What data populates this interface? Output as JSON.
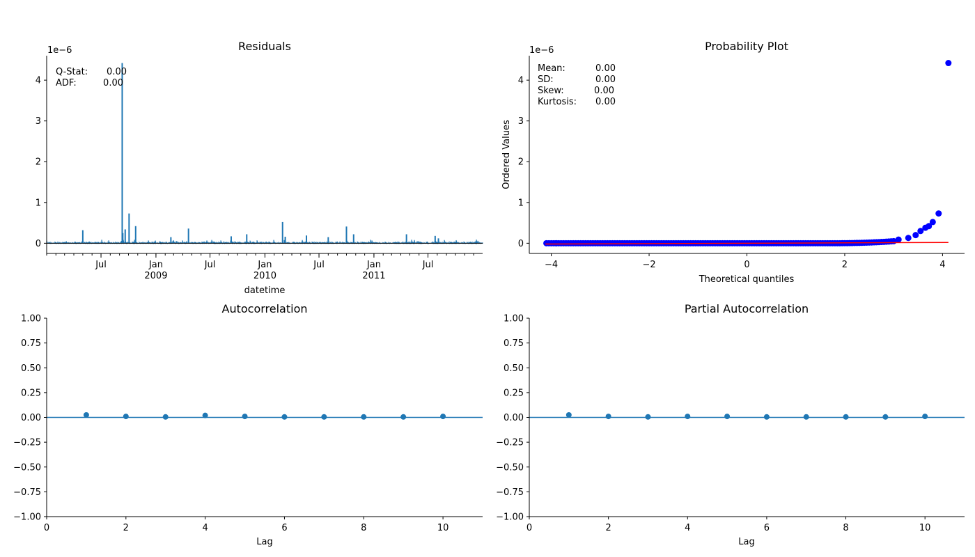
{
  "chart_data": [
    {
      "type": "line",
      "title": "Residuals",
      "xlabel": "datetime",
      "ylabel": "",
      "offset_text": "1e−6",
      "x_range": [
        "2008-01-01",
        "2011-12-31"
      ],
      "ylim": [
        -0.25,
        4.6
      ],
      "yticks": [
        0,
        1,
        2,
        3,
        4
      ],
      "xticks": [
        {
          "date": "2008-07-01",
          "label": "Jul",
          "year": ""
        },
        {
          "date": "2009-01-01",
          "label": "Jan",
          "year": "2009"
        },
        {
          "date": "2009-07-01",
          "label": "Jul",
          "year": ""
        },
        {
          "date": "2010-01-01",
          "label": "Jan",
          "year": "2010"
        },
        {
          "date": "2010-07-01",
          "label": "Jul",
          "year": ""
        },
        {
          "date": "2011-01-01",
          "label": "Jan",
          "year": "2011"
        },
        {
          "date": "2011-07-01",
          "label": "Jul",
          "year": ""
        }
      ],
      "annotations": [
        {
          "label": "Q-Stat:",
          "value": "0.00"
        },
        {
          "label": "ADF:",
          "value": "0.00"
        }
      ],
      "spikes": [
        {
          "date": "2008-05-01",
          "value": 0.32
        },
        {
          "date": "2008-09-10",
          "value": 4.42
        },
        {
          "date": "2008-09-12",
          "value": 0.25
        },
        {
          "date": "2008-09-20",
          "value": 0.34
        },
        {
          "date": "2008-10-03",
          "value": 0.73
        },
        {
          "date": "2008-10-25",
          "value": 0.42
        },
        {
          "date": "2009-02-20",
          "value": 0.15
        },
        {
          "date": "2009-04-20",
          "value": 0.36
        },
        {
          "date": "2009-09-10",
          "value": 0.17
        },
        {
          "date": "2009-11-01",
          "value": 0.22
        },
        {
          "date": "2010-03-01",
          "value": 0.52
        },
        {
          "date": "2010-03-10",
          "value": 0.16
        },
        {
          "date": "2010-05-20",
          "value": 0.19
        },
        {
          "date": "2010-08-01",
          "value": 0.15
        },
        {
          "date": "2010-10-01",
          "value": 0.41
        },
        {
          "date": "2010-10-25",
          "value": 0.22
        },
        {
          "date": "2011-04-20",
          "value": 0.22
        },
        {
          "date": "2011-07-25",
          "value": 0.18
        },
        {
          "date": "2011-08-05",
          "value": 0.12
        }
      ],
      "color": "#1f77b4"
    },
    {
      "type": "scatter",
      "title": "Probability Plot",
      "xlabel": "Theoretical quantiles",
      "ylabel": "Ordered Values",
      "offset_text": "1e−6",
      "xlim": [
        -4.45,
        4.45
      ],
      "ylim": [
        -0.25,
        4.6
      ],
      "xticks": [
        -4,
        -2,
        0,
        2,
        4
      ],
      "yticks": [
        0,
        1,
        2,
        3,
        4
      ],
      "annotations": [
        {
          "label": "Mean:",
          "value": "0.00"
        },
        {
          "label": "SD:",
          "value": "0.00"
        },
        {
          "label": "Skew:",
          "value": "0.00"
        },
        {
          "label": "Kurtosis:",
          "value": "0.00"
        }
      ],
      "outliers": [
        {
          "x": 3.1,
          "y": 0.09
        },
        {
          "x": 3.3,
          "y": 0.13
        },
        {
          "x": 3.45,
          "y": 0.2
        },
        {
          "x": 3.55,
          "y": 0.3
        },
        {
          "x": 3.65,
          "y": 0.38
        },
        {
          "x": 3.72,
          "y": 0.42
        },
        {
          "x": 3.8,
          "y": 0.52
        },
        {
          "x": 3.92,
          "y": 0.73
        },
        {
          "x": 4.12,
          "y": 4.42
        }
      ],
      "fit_line": {
        "x": [
          -4.12,
          4.12
        ],
        "y": [
          -0.02,
          0.02
        ]
      },
      "point_color": "#0000ff",
      "line_color": "#ff0000"
    },
    {
      "type": "stem",
      "title": "Autocorrelation",
      "xlabel": "Lag",
      "ylabel": "",
      "xlim": [
        0,
        11
      ],
      "ylim": [
        -1,
        1
      ],
      "xticks": [
        0,
        2,
        4,
        6,
        8,
        10
      ],
      "yticks": [
        "1.00",
        "0.75",
        "0.50",
        "0.25",
        "0.00",
        "−0.25",
        "−0.50",
        "−0.75",
        "−1.00"
      ],
      "x": [
        1,
        2,
        3,
        4,
        5,
        6,
        7,
        8,
        9,
        10
      ],
      "values": [
        0.025,
        0.01,
        0.005,
        0.02,
        0.01,
        0.005,
        0.005,
        0.005,
        0.005,
        0.01
      ],
      "conf_band": [
        -0.003,
        0.003
      ],
      "color": "#1f77b4"
    },
    {
      "type": "stem",
      "title": "Partial Autocorrelation",
      "xlabel": "Lag",
      "ylabel": "",
      "xlim": [
        0,
        11
      ],
      "ylim": [
        -1,
        1
      ],
      "xticks": [
        0,
        2,
        4,
        6,
        8,
        10
      ],
      "yticks": [
        "1.00",
        "0.75",
        "0.50",
        "0.25",
        "0.00",
        "−0.25",
        "−0.50",
        "−0.75",
        "−1.00"
      ],
      "x": [
        1,
        2,
        3,
        4,
        5,
        6,
        7,
        8,
        9,
        10
      ],
      "values": [
        0.025,
        0.01,
        0.005,
        0.01,
        0.01,
        0.005,
        0.005,
        0.005,
        0.005,
        0.01
      ],
      "conf_band": [
        -0.003,
        0.003
      ],
      "color": "#1f77b4"
    }
  ]
}
